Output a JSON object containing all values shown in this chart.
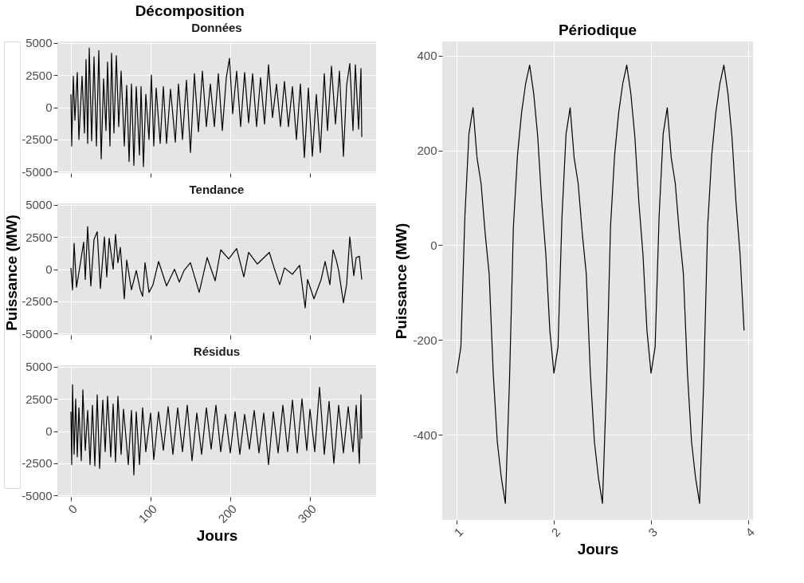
{
  "chart_data": [
    {
      "type": "line",
      "title": "Décomposition",
      "subtitle": "Données",
      "xlim": [
        -17,
        383
      ],
      "ylim": [
        -5100,
        5100
      ],
      "xticks": [
        0,
        100,
        200,
        300
      ],
      "yticks": [
        -5000,
        -2500,
        0,
        2500,
        5000
      ],
      "grid": true,
      "tick_labels": "y",
      "x": [
        0,
        1,
        3,
        5,
        8,
        10,
        14,
        17,
        19,
        21,
        23,
        26,
        29,
        32,
        35,
        38,
        41,
        44,
        46,
        49,
        51,
        54,
        57,
        60,
        63,
        67,
        70,
        73,
        76,
        79,
        82,
        86,
        88,
        91,
        94,
        98,
        101,
        104,
        107,
        112,
        116,
        120,
        125,
        131,
        135,
        140,
        145,
        150,
        155,
        160,
        165,
        170,
        175,
        180,
        185,
        190,
        195,
        199,
        203,
        208,
        213,
        218,
        223,
        228,
        233,
        238,
        243,
        248,
        253,
        258,
        263,
        268,
        273,
        278,
        283,
        288,
        293,
        298,
        303,
        308,
        313,
        318,
        322,
        327,
        332,
        337,
        342,
        346,
        350,
        354,
        357,
        361,
        364,
        365
      ],
      "series": [
        {
          "color": "#000000",
          "values": [
            1000,
            -3000,
            2400,
            -1000,
            2700,
            -2500,
            2400,
            -2000,
            3700,
            -2800,
            4600,
            -2600,
            3900,
            -3000,
            4400,
            -4000,
            2200,
            -1800,
            3500,
            -3000,
            4200,
            -2000,
            4000,
            -1500,
            2800,
            -3000,
            1700,
            -4200,
            1800,
            -4500,
            1600,
            -3700,
            1600,
            -4600,
            1000,
            -2500,
            2500,
            -3000,
            1500,
            -2800,
            1600,
            -2800,
            1400,
            -2700,
            1800,
            -2500,
            2100,
            -3500,
            2600,
            -1900,
            2800,
            -1500,
            1800,
            -1500,
            2600,
            -1800,
            2300,
            3800,
            -500,
            2800,
            -1500,
            2700,
            -1200,
            2600,
            -1500,
            2300,
            -1300,
            3300,
            -800,
            1800,
            -1500,
            2000,
            -1500,
            1600,
            -2500,
            1800,
            -3900,
            1500,
            -3800,
            1000,
            -3500,
            2600,
            -1800,
            3200,
            -1300,
            2800,
            -3800,
            1700,
            3400,
            -1800,
            3300,
            -1700,
            3000,
            -2300
          ]
        }
      ]
    },
    {
      "type": "line",
      "title": "Tendance",
      "ylabel": "Puissance (MW)",
      "xlim": [
        -17,
        383
      ],
      "ylim": [
        -5100,
        5100
      ],
      "xticks": [
        0,
        100,
        200,
        300
      ],
      "yticks": [
        -5000,
        -2500,
        0,
        2500,
        5000
      ],
      "grid": true,
      "tick_labels": "y",
      "x": [
        0,
        2,
        4,
        7,
        12,
        16,
        18,
        21,
        25,
        29,
        33,
        37,
        42,
        45,
        48,
        53,
        56,
        59,
        62,
        67,
        70,
        76,
        82,
        87,
        90,
        93,
        98,
        103,
        110,
        120,
        130,
        136,
        142,
        150,
        161,
        171,
        181,
        188,
        198,
        208,
        217,
        223,
        234,
        249,
        255,
        262,
        268,
        278,
        287,
        294,
        297,
        305,
        314,
        319,
        325,
        329,
        333,
        336,
        342,
        346,
        350,
        355,
        358,
        362,
        365
      ],
      "series": [
        {
          "color": "#000000",
          "values": [
            100,
            -1600,
            2000,
            -1400,
            500,
            2100,
            -800,
            3300,
            -1300,
            2300,
            2900,
            -1500,
            2500,
            -600,
            2400,
            0,
            2700,
            500,
            1700,
            -2300,
            700,
            -1600,
            -100,
            -1600,
            -2100,
            500,
            -1800,
            -1200,
            600,
            -1300,
            0,
            -1000,
            -100,
            500,
            -1800,
            900,
            -900,
            1500,
            800,
            1600,
            -600,
            1300,
            400,
            1300,
            100,
            -1200,
            100,
            -400,
            300,
            -3000,
            -800,
            -2300,
            -800,
            600,
            -1200,
            1500,
            700,
            -100,
            -2600,
            -1200,
            2500,
            -500,
            900,
            1000,
            -800
          ]
        }
      ]
    },
    {
      "type": "line",
      "title": "Résidus",
      "xlabel": "Jours",
      "xlim": [
        -17,
        383
      ],
      "ylim": [
        -5100,
        5100
      ],
      "xticks": [
        0,
        100,
        200,
        300
      ],
      "yticks": [
        -5000,
        -2500,
        0,
        2500,
        5000
      ],
      "grid": true,
      "x": [
        0,
        1,
        2,
        4,
        6,
        8,
        10,
        13,
        15,
        18,
        21,
        24,
        27,
        30,
        33,
        36,
        40,
        43,
        46,
        50,
        53,
        56,
        59,
        63,
        66,
        72,
        76,
        79,
        82,
        86,
        90,
        94,
        100,
        104,
        110,
        116,
        122,
        128,
        134,
        140,
        146,
        152,
        158,
        164,
        170,
        176,
        182,
        188,
        194,
        200,
        206,
        212,
        218,
        224,
        230,
        236,
        242,
        248,
        254,
        260,
        266,
        272,
        278,
        284,
        290,
        296,
        300,
        306,
        312,
        318,
        324,
        330,
        336,
        342,
        348,
        354,
        358,
        362,
        364,
        365
      ],
      "series": [
        {
          "color": "#000000",
          "values": [
            1500,
            -2600,
            3600,
            -1800,
            2500,
            -2000,
            1800,
            -2300,
            3200,
            -1500,
            1600,
            -2600,
            2000,
            -2700,
            2800,
            -2900,
            2400,
            -1600,
            2700,
            -2000,
            2100,
            -2400,
            2700,
            -1800,
            1700,
            -2600,
            1600,
            -3400,
            1500,
            -2600,
            1800,
            -1600,
            1400,
            -2200,
            1500,
            -1500,
            1900,
            -1800,
            1800,
            -1600,
            2000,
            -2300,
            1400,
            -1800,
            1800,
            -1400,
            2000,
            -1600,
            1300,
            -1700,
            1500,
            -1800,
            1300,
            -1400,
            1600,
            -1700,
            1400,
            -2600,
            1500,
            -1700,
            2000,
            -1600,
            2400,
            -1700,
            2500,
            -1500,
            1700,
            -1600,
            3400,
            -1800,
            2300,
            -2500,
            2000,
            -1700,
            1900,
            -1600,
            2000,
            -2500,
            2800,
            -600
          ]
        }
      ]
    },
    {
      "type": "line",
      "title": "Périodique",
      "xlabel": "Jours",
      "ylabel": "Puissance (MW)",
      "xlim": [
        0.85,
        4.05
      ],
      "ylim": [
        -580,
        430
      ],
      "xticks": [
        1,
        2,
        3,
        4
      ],
      "yticks": [
        -400,
        -200,
        0,
        200,
        400
      ],
      "grid": true,
      "x": [
        1,
        1.042,
        1.083,
        1.125,
        1.167,
        1.208,
        1.25,
        1.292,
        1.333,
        1.375,
        1.417,
        1.458,
        1.5,
        1.542,
        1.583,
        1.625,
        1.667,
        1.708,
        1.75,
        1.792,
        1.833,
        1.875,
        1.917,
        1.958,
        2,
        2.042,
        2.083,
        2.125,
        2.167,
        2.208,
        2.25,
        2.292,
        2.333,
        2.375,
        2.417,
        2.458,
        2.5,
        2.542,
        2.583,
        2.625,
        2.667,
        2.708,
        2.75,
        2.792,
        2.833,
        2.875,
        2.917,
        2.958,
        3,
        3.042,
        3.083,
        3.125,
        3.167,
        3.208,
        3.25,
        3.292,
        3.333,
        3.375,
        3.417,
        3.458,
        3.5,
        3.542,
        3.583,
        3.625,
        3.667,
        3.708,
        3.75,
        3.792,
        3.833,
        3.875,
        3.917,
        3.958
      ],
      "series": [
        {
          "color": "#000000",
          "values": [
            -270,
            -215,
            60,
            235,
            290,
            185,
            130,
            25,
            -60,
            -270,
            -415,
            -490,
            -545,
            -290,
            40,
            190,
            280,
            340,
            380,
            320,
            230,
            90,
            -20,
            -180,
            -270,
            -215,
            60,
            235,
            290,
            185,
            130,
            25,
            -60,
            -270,
            -415,
            -490,
            -545,
            -290,
            40,
            190,
            280,
            340,
            380,
            320,
            230,
            90,
            -20,
            -180,
            -270,
            -215,
            60,
            235,
            290,
            185,
            130,
            25,
            -60,
            -270,
            -415,
            -490,
            -545,
            -290,
            40,
            190,
            280,
            340,
            380,
            320,
            230,
            90,
            -20,
            -180
          ]
        }
      ]
    }
  ]
}
